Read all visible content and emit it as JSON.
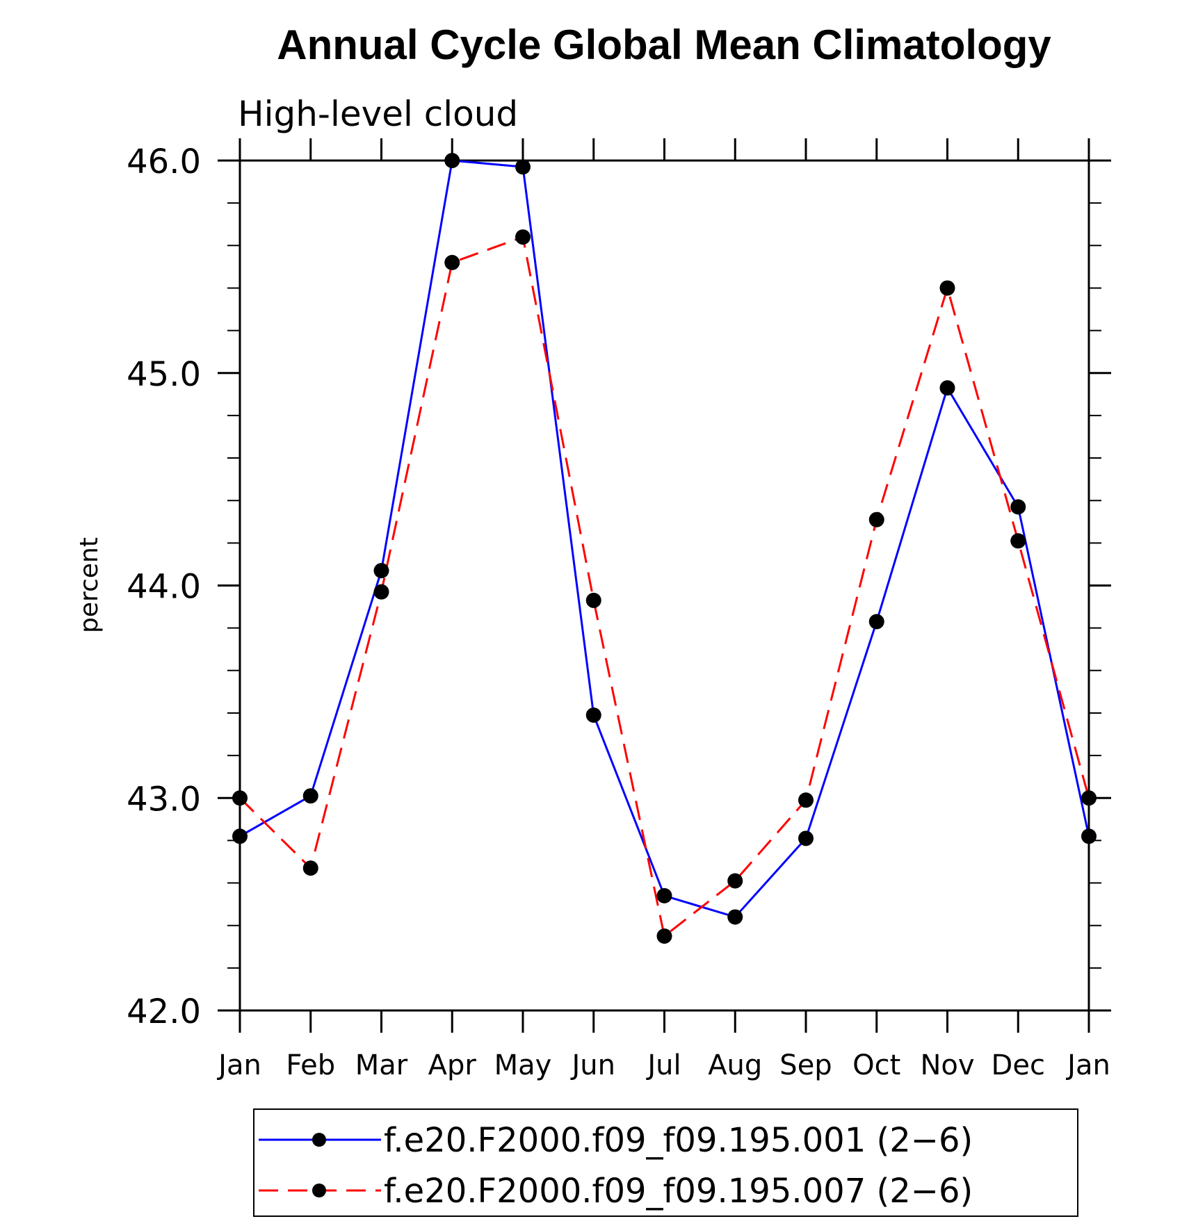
{
  "chart_data": {
    "type": "line",
    "title": "Annual Cycle Global Mean Climatology",
    "subtitle": "High-level cloud",
    "xlabel": "",
    "ylabel": "percent",
    "categories": [
      "Jan",
      "Feb",
      "Mar",
      "Apr",
      "May",
      "Jun",
      "Jul",
      "Aug",
      "Sep",
      "Oct",
      "Nov",
      "Dec",
      "Jan"
    ],
    "ylim": [
      42.0,
      46.0
    ],
    "yticks": [
      "42.0",
      "43.0",
      "44.0",
      "45.0",
      "46.0"
    ],
    "grid": false,
    "legend_position": "bottom",
    "series": [
      {
        "name": "f.e20.F2000.f09_f09.195.001 (2−6)",
        "color": "#0000ff",
        "line_style": "solid",
        "marker": "filled-circle",
        "values": [
          42.82,
          43.01,
          44.07,
          46.0,
          45.97,
          43.39,
          42.54,
          42.44,
          42.81,
          43.83,
          44.93,
          44.37,
          42.82
        ]
      },
      {
        "name": "f.e20.F2000.f09_f09.195.007 (2−6)",
        "color": "#ff0000",
        "line_style": "dashed",
        "marker": "filled-circle",
        "values": [
          43.0,
          42.67,
          43.97,
          45.52,
          45.64,
          43.93,
          42.35,
          42.61,
          42.99,
          44.31,
          45.4,
          44.21,
          43.0
        ]
      }
    ]
  }
}
